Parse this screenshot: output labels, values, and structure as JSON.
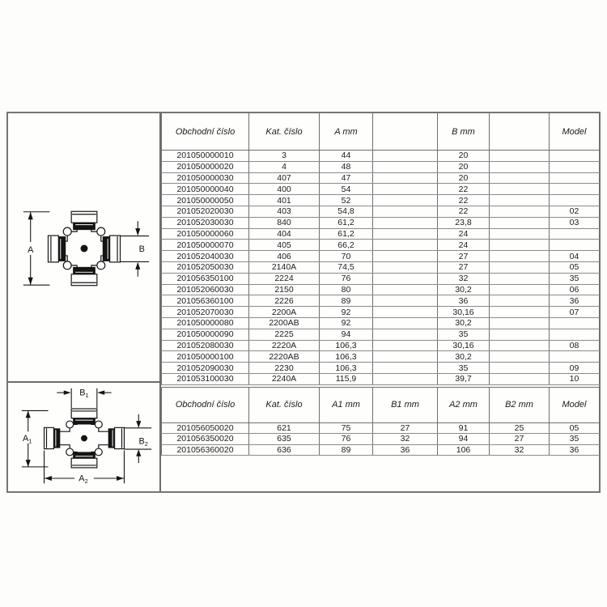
{
  "colors": {
    "background": "#fdfdfc",
    "frame_border": "#757575",
    "table_grid": "#6f6f6f",
    "drawing_line": "#141414",
    "text": "#1c1c1c"
  },
  "diagram1": {
    "description": "universal-joint-cross-single-size",
    "labels": {
      "a": {
        "base": "A",
        "sub": ""
      },
      "b": {
        "base": "B",
        "sub": ""
      }
    }
  },
  "diagram2": {
    "description": "universal-joint-cross-dual-size",
    "labels": {
      "b1": {
        "base": "B",
        "sub": "1"
      },
      "a1": {
        "base": "A",
        "sub": "1"
      },
      "b2": {
        "base": "B",
        "sub": "2"
      },
      "a2": {
        "base": "A",
        "sub": "2"
      }
    }
  },
  "table1": {
    "headers": [
      "Obchodní číslo",
      "Kat. číslo",
      "A mm",
      "",
      "B mm",
      "",
      "Model"
    ],
    "rows": [
      [
        "201050000010",
        "3",
        "44",
        "",
        "20",
        "",
        ""
      ],
      [
        "201050000020",
        "4",
        "48",
        "",
        "20",
        "",
        ""
      ],
      [
        "201050000030",
        "407",
        "47",
        "",
        "20",
        "",
        ""
      ],
      [
        "201050000040",
        "400",
        "54",
        "",
        "22",
        "",
        ""
      ],
      [
        "201050000050",
        "401",
        "52",
        "",
        "22",
        "",
        ""
      ],
      [
        "201052020030",
        "403",
        "54,8",
        "",
        "22",
        "",
        "02"
      ],
      [
        "201052030030",
        "840",
        "61,2",
        "",
        "23,8",
        "",
        "03"
      ],
      [
        "201050000060",
        "404",
        "61,2",
        "",
        "24",
        "",
        ""
      ],
      [
        "201050000070",
        "405",
        "66,2",
        "",
        "24",
        "",
        ""
      ],
      [
        "201052040030",
        "406",
        "70",
        "",
        "27",
        "",
        "04"
      ],
      [
        "201052050030",
        "2140A",
        "74,5",
        "",
        "27",
        "",
        "05"
      ],
      [
        "201056350100",
        "2224",
        "76",
        "",
        "32",
        "",
        "35"
      ],
      [
        "201052060030",
        "2150",
        "80",
        "",
        "30,2",
        "",
        "06"
      ],
      [
        "201056360100",
        "2226",
        "89",
        "",
        "36",
        "",
        "36"
      ],
      [
        "201052070030",
        "2200A",
        "92",
        "",
        "30,16",
        "",
        "07"
      ],
      [
        "201050000080",
        "2200AB",
        "92",
        "",
        "30,2",
        "",
        ""
      ],
      [
        "201050000090",
        "2225",
        "94",
        "",
        "35",
        "",
        ""
      ],
      [
        "201052080030",
        "2220A",
        "106,3",
        "",
        "30,16",
        "",
        "08"
      ],
      [
        "201050000100",
        "2220AB",
        "106,3",
        "",
        "30,2",
        "",
        ""
      ],
      [
        "201052090030",
        "2230",
        "106,3",
        "",
        "35",
        "",
        "09"
      ],
      [
        "201053100030",
        "2240A",
        "115,9",
        "",
        "39,7",
        "",
        "10"
      ]
    ]
  },
  "table2": {
    "headers": [
      "Obchodní číslo",
      "Kat. číslo",
      "A1 mm",
      "B1 mm",
      "A2 mm",
      "B2 mm",
      "Model"
    ],
    "rows": [
      [
        "201056050020",
        "621",
        "75",
        "27",
        "91",
        "25",
        "05"
      ],
      [
        "201056350020",
        "635",
        "76",
        "32",
        "94",
        "27",
        "35"
      ],
      [
        "201056360020",
        "636",
        "89",
        "36",
        "106",
        "32",
        "36"
      ]
    ]
  }
}
